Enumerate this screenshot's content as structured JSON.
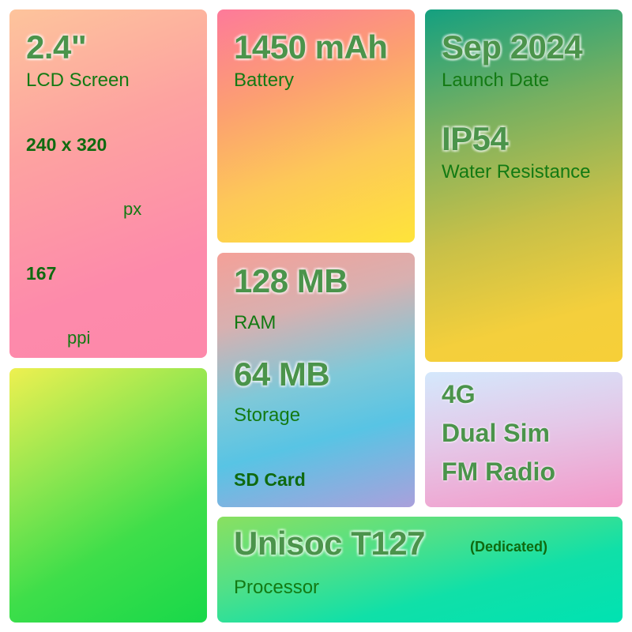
{
  "screen": {
    "value": "2.4\"",
    "label": "LCD Screen",
    "resolution": "240 x 320",
    "resolution_unit": "px",
    "density": "167",
    "density_unit": "ppi"
  },
  "battery": {
    "value": "1450 mAh",
    "label": "Battery"
  },
  "launch": {
    "value": "Sep 2024",
    "label": "Launch Date",
    "ip": "IP54",
    "ip_label": "Water Resistance"
  },
  "memory": {
    "ram": "128 MB",
    "ram_label": "RAM",
    "storage": "64 MB",
    "storage_label": "Storage",
    "sd": "SD Card"
  },
  "features": [
    "4G",
    "Dual Sim",
    "FM Radio"
  ],
  "processor": {
    "value": "Unisoc T127",
    "note": "(Dedicated)",
    "label": "Processor"
  }
}
